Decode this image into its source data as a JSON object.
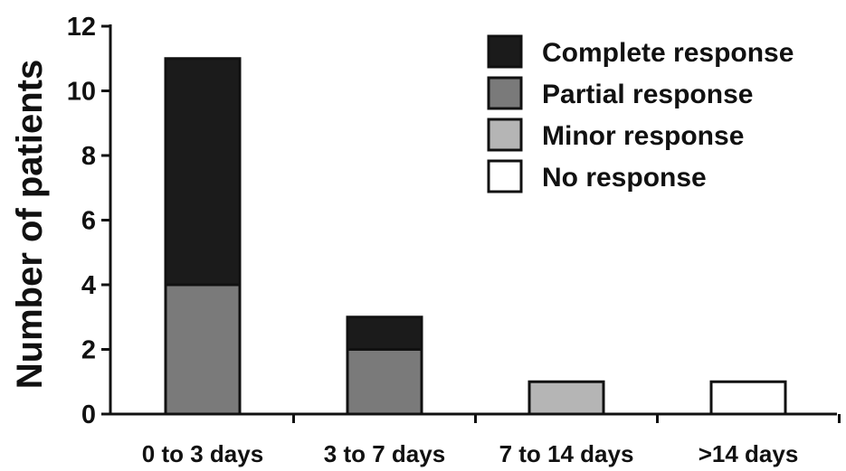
{
  "chart_data": {
    "type": "bar",
    "stacked": true,
    "title": "",
    "xlabel": "",
    "ylabel": "Number of patients",
    "ylim": [
      0,
      12
    ],
    "yticks": [
      0,
      2,
      4,
      6,
      8,
      10,
      12
    ],
    "categories": [
      "0 to 3 days",
      "3 to 7 days",
      "7 to 14 days",
      ">14 days"
    ],
    "series": [
      {
        "name": "No response",
        "color": "#ffffff",
        "values": [
          0,
          0,
          0,
          1
        ]
      },
      {
        "name": "Minor response",
        "color": "#b5b5b5",
        "values": [
          0,
          0,
          1,
          0
        ]
      },
      {
        "name": "Partial response",
        "color": "#7a7a7a",
        "values": [
          4,
          2,
          0,
          0
        ]
      },
      {
        "name": "Complete response",
        "color": "#1b1b1b",
        "values": [
          7,
          1,
          0,
          0
        ]
      }
    ],
    "legend": {
      "position": "top-right",
      "order": [
        "Complete response",
        "Partial response",
        "Minor response",
        "No response"
      ]
    },
    "grid": false
  }
}
